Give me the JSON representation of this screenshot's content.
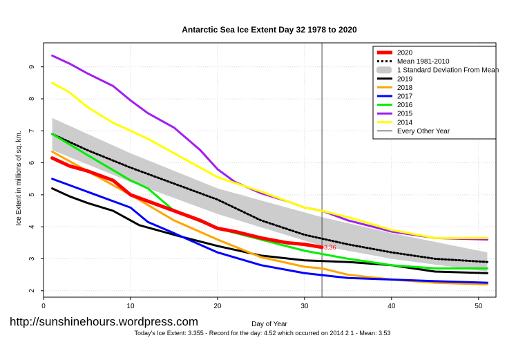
{
  "chart_data": {
    "type": "line",
    "title": "Antarctic Sea Ice Extent Day 32 1978 to 2020",
    "xlabel": "Day of Year",
    "ylabel": "Ice Extent in millions of sq. km.",
    "xlim": [
      0,
      52
    ],
    "ylim": [
      1.8,
      9.75
    ],
    "xticks": [
      0,
      10,
      20,
      30,
      40,
      50
    ],
    "yticks": [
      2,
      3,
      4,
      5,
      6,
      7,
      8,
      9
    ],
    "grid": true,
    "legend_position": "top-right",
    "current_day_marker": 32,
    "current_value_label": "3.36",
    "legend": [
      {
        "name": "2020",
        "color": "#ff0000",
        "style": "thick"
      },
      {
        "name": "Mean 1981-2010",
        "color": "#000000",
        "style": "dotted"
      },
      {
        "name": "1 Standard Deviation From Mean",
        "color": "#c8c8c8",
        "style": "band"
      },
      {
        "name": "2019",
        "color": "#000000",
        "style": "medium"
      },
      {
        "name": "2018",
        "color": "#ffa500",
        "style": "medium"
      },
      {
        "name": "2017",
        "color": "#0000ff",
        "style": "medium"
      },
      {
        "name": "2016",
        "color": "#00ee00",
        "style": "medium"
      },
      {
        "name": "2015",
        "color": "#a020f0",
        "style": "medium"
      },
      {
        "name": "2014",
        "color": "#ffff00",
        "style": "medium"
      },
      {
        "name": "Every Other Year",
        "color": "#000000",
        "style": "thin"
      }
    ],
    "band": {
      "x": [
        1,
        10,
        20,
        32,
        40,
        51
      ],
      "upper": [
        7.4,
        6.3,
        5.2,
        4.3,
        3.8,
        3.2
      ],
      "lower": [
        6.4,
        5.4,
        4.4,
        3.4,
        3.0,
        2.6
      ]
    },
    "series": [
      {
        "name": "2020",
        "color": "#ff0000",
        "width": 5,
        "x": [
          1,
          3,
          5,
          8,
          10,
          12,
          15,
          18,
          20,
          22,
          25,
          28,
          30,
          32
        ],
        "y": [
          6.15,
          5.9,
          5.75,
          5.45,
          5.0,
          4.8,
          4.5,
          4.2,
          3.95,
          3.85,
          3.65,
          3.5,
          3.45,
          3.36
        ]
      },
      {
        "name": "Mean 1981-2010",
        "color": "#000000",
        "width": 3,
        "dash": "2,3",
        "x": [
          1,
          5,
          10,
          15,
          20,
          25,
          30,
          35,
          40,
          45,
          51
        ],
        "y": [
          6.9,
          6.4,
          5.85,
          5.35,
          4.85,
          4.2,
          3.75,
          3.45,
          3.2,
          3.0,
          2.9
        ]
      },
      {
        "name": "2019",
        "color": "#000000",
        "width": 3,
        "x": [
          1,
          3,
          5,
          8,
          11,
          15,
          20,
          25,
          30,
          35,
          40,
          45,
          51
        ],
        "y": [
          5.2,
          4.95,
          4.75,
          4.5,
          4.05,
          3.75,
          3.4,
          3.1,
          2.95,
          2.9,
          2.8,
          2.6,
          2.55
        ]
      },
      {
        "name": "2018",
        "color": "#ffa500",
        "width": 3,
        "x": [
          1,
          5,
          10,
          15,
          20,
          25,
          30,
          32,
          35,
          40,
          45,
          51
        ],
        "y": [
          6.35,
          5.75,
          5.0,
          4.2,
          3.6,
          3.05,
          2.75,
          2.7,
          2.5,
          2.35,
          2.25,
          2.2
        ]
      },
      {
        "name": "2017",
        "color": "#0000ff",
        "width": 3,
        "x": [
          1,
          5,
          10,
          12,
          15,
          20,
          25,
          30,
          35,
          40,
          45,
          51
        ],
        "y": [
          5.5,
          5.1,
          4.6,
          4.15,
          3.8,
          3.2,
          2.8,
          2.55,
          2.4,
          2.35,
          2.3,
          2.25
        ]
      },
      {
        "name": "2016",
        "color": "#00ee00",
        "width": 3,
        "x": [
          1,
          5,
          10,
          12,
          15,
          20,
          25,
          30,
          35,
          40,
          45,
          51
        ],
        "y": [
          6.9,
          6.25,
          5.45,
          5.2,
          4.5,
          3.95,
          3.6,
          3.25,
          3.0,
          2.8,
          2.7,
          2.7
        ]
      },
      {
        "name": "2015",
        "color": "#a020f0",
        "width": 3,
        "x": [
          1,
          3,
          5,
          8,
          10,
          12,
          15,
          18,
          20,
          22,
          25,
          28,
          30,
          32,
          35,
          40,
          45,
          51
        ],
        "y": [
          9.35,
          9.1,
          8.8,
          8.4,
          7.95,
          7.55,
          7.1,
          6.4,
          5.8,
          5.4,
          5.05,
          4.8,
          4.6,
          4.5,
          4.2,
          3.85,
          3.65,
          3.6
        ]
      },
      {
        "name": "2014",
        "color": "#ffff00",
        "width": 3,
        "x": [
          1,
          3,
          5,
          8,
          10,
          12,
          15,
          18,
          20,
          25,
          30,
          32,
          35,
          40,
          45,
          51
        ],
        "y": [
          8.5,
          8.2,
          7.75,
          7.25,
          7.0,
          6.75,
          6.3,
          5.85,
          5.55,
          5.1,
          4.6,
          4.5,
          4.3,
          3.9,
          3.65,
          3.65
        ]
      }
    ]
  },
  "watermark": "http://sunshinehours.wordpress.com",
  "footer": "Today's Ice Extent: 3.355  - Record for the day: 4.52 which occurred on 2014 2 1  - Mean: 3.53"
}
